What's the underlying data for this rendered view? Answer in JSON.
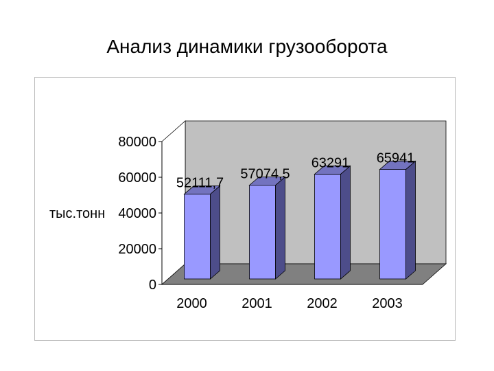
{
  "page": {
    "title": "Анализ динамики грузооборота"
  },
  "chart_data": {
    "type": "bar",
    "title": "",
    "xlabel": "",
    "ylabel": "тыс.тонн",
    "categories": [
      "2000",
      "2001",
      "2002",
      "2003"
    ],
    "series": [
      {
        "values": [
          52111.7,
          57074.5,
          63291,
          65941
        ],
        "labels": [
          "52111,7",
          "57074,5",
          "63291",
          "65941"
        ]
      }
    ],
    "ylim": [
      0,
      80000
    ],
    "yticks": [
      "0",
      "20000",
      "40000",
      "60000",
      "80000"
    ],
    "grid": false,
    "legend": "none",
    "style": "3d",
    "colors": {
      "bar_front": "#9999ff",
      "bar_side": "#4d4d8a",
      "bar_top": "#7373bf",
      "back_wall": "#c0c0c0",
      "floor": "#808080"
    }
  }
}
